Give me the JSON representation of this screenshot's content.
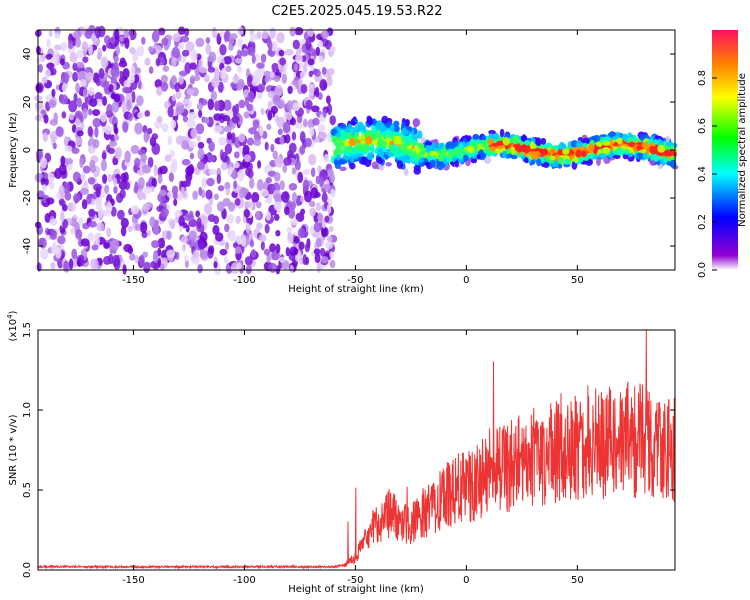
{
  "title": "C2E5.2025.045.19.53.R22",
  "chart_data": [
    {
      "type": "heatmap",
      "xlabel": "Height of straight line (km)",
      "ylabel": "Frequency (Hz)",
      "xlim": [
        -193,
        94
      ],
      "ylim": [
        -50,
        50
      ],
      "xticks": [
        -150,
        -100,
        -50,
        0,
        50
      ],
      "xtick_labels": [
        "-150",
        "-100",
        "-50",
        "0",
        "50"
      ],
      "yticks": [
        -40,
        -20,
        0,
        20,
        40
      ],
      "ytick_labels": [
        "-40",
        "-20",
        "0",
        "20",
        "40"
      ],
      "colorbar": {
        "label": "Normalized spectral amplitude",
        "range": [
          0,
          1
        ],
        "ticks": [
          0.0,
          0.2,
          0.4,
          0.6,
          0.8
        ],
        "tick_labels": [
          "0.0",
          "0.2",
          "0.4",
          "0.6",
          "0.8"
        ],
        "colors": [
          "#ffffff",
          "#9400d3",
          "#0000ff",
          "#00ffff",
          "#00ff00",
          "#ffff00",
          "#ff8000",
          "#ff0000"
        ]
      },
      "regions": [
        {
          "name": "noise",
          "x": [
            -193,
            -60
          ],
          "freq_range": [
            -50,
            50
          ],
          "amplitude": 0.15
        },
        {
          "name": "signal",
          "x": [
            -60,
            94
          ],
          "center_freq_hz": 0,
          "amplitude": 0.7
        }
      ]
    },
    {
      "type": "line",
      "xlabel": "Height of straight line (km)",
      "ylabel": "SNR (10 * v/v)",
      "scale_label": "(x10",
      "scale_exp": "4",
      "scale_close": ")",
      "xlim": [
        -193,
        94
      ],
      "ylim": [
        0,
        1.5
      ],
      "xticks": [
        -150,
        -100,
        -50,
        0,
        50
      ],
      "xtick_labels": [
        "-150",
        "-100",
        "-50",
        "0",
        "50"
      ],
      "yticks": [
        0.0,
        0.5,
        1.0,
        1.5
      ],
      "ytick_labels": [
        "0.0",
        "0.5",
        "1.0",
        "1.5"
      ],
      "color": "#ee3333",
      "x": [
        -193,
        -150,
        -100,
        -60,
        -55,
        -50,
        -45,
        -40,
        -35,
        -30,
        -25,
        -20,
        -15,
        -10,
        -5,
        0,
        5,
        10,
        15,
        20,
        25,
        30,
        35,
        40,
        45,
        50,
        55,
        60,
        65,
        70,
        75,
        80,
        85,
        90,
        94
      ],
      "y": [
        0.02,
        0.02,
        0.02,
        0.02,
        0.03,
        0.08,
        0.2,
        0.3,
        0.35,
        0.32,
        0.28,
        0.35,
        0.4,
        0.45,
        0.5,
        0.52,
        0.55,
        0.6,
        0.62,
        0.65,
        0.68,
        0.7,
        0.72,
        0.75,
        0.78,
        0.78,
        0.8,
        0.8,
        0.8,
        0.8,
        0.82,
        0.8,
        0.78,
        0.76,
        0.75
      ]
    }
  ]
}
